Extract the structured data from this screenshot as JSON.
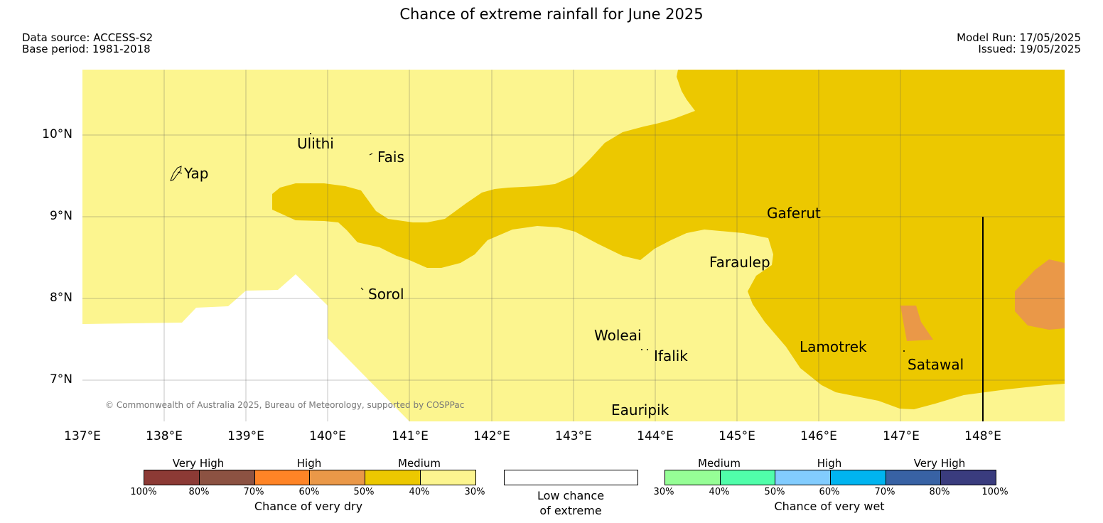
{
  "header": {
    "title": "Chance of extreme rainfall for June 2025",
    "data_source": "Data source: ACCESS-S2",
    "base_period": "Base period: 1981-2018",
    "model_run": "Model Run: 17/05/2025",
    "issued": "Issued: 19/05/2025"
  },
  "map": {
    "copyright": "© Commonwealth of Australia 2025, Bureau of Meteorology, supported by COSPPac",
    "lat_labels": [
      "10°N",
      "9°N",
      "8°N",
      "7°N"
    ],
    "lon_labels": [
      "137°E",
      "138°E",
      "139°E",
      "140°E",
      "141°E",
      "142°E",
      "143°E",
      "144°E",
      "145°E",
      "146°E",
      "147°E",
      "148°E"
    ],
    "places": {
      "yap": "Yap",
      "ulithi": "Ulithi",
      "fais": "Fais",
      "sorol": "Sorol",
      "gaferut": "Gaferut",
      "faraulep": "Faraulep",
      "woleai": "Woleai",
      "ifalik": "Ifalik",
      "lamotrek": "Lamotrek",
      "satawal": "Satawal",
      "eauripik": "Eauripik"
    },
    "fill_colors": {
      "dry_30_40": "#fcf58f",
      "dry_40_50": "#ecc800",
      "dry_50_60": "#ea9848",
      "low_chance": "#ffffff"
    }
  },
  "legend": {
    "dry": {
      "categories": [
        "Very High",
        "High",
        "Medium"
      ],
      "ticks": [
        "100%",
        "80%",
        "70%",
        "60%",
        "50%",
        "40%",
        "30%"
      ],
      "colors": [
        "#8c3a35",
        "#8c5242",
        "#ff8426",
        "#ea9848",
        "#ecc800",
        "#fcf58f"
      ],
      "caption": "Chance of very dry"
    },
    "neutral": {
      "caption_line1": "Low chance",
      "caption_line2": "of extreme"
    },
    "wet": {
      "categories": [
        "Medium",
        "High",
        "Very High"
      ],
      "ticks": [
        "30%",
        "40%",
        "50%",
        "60%",
        "70%",
        "80%",
        "100%"
      ],
      "colors": [
        "#96fe96",
        "#50feaa",
        "#82ccfe",
        "#00b4f0",
        "#3862a4",
        "#3a3c7e"
      ],
      "caption": "Chance of very wet"
    }
  }
}
